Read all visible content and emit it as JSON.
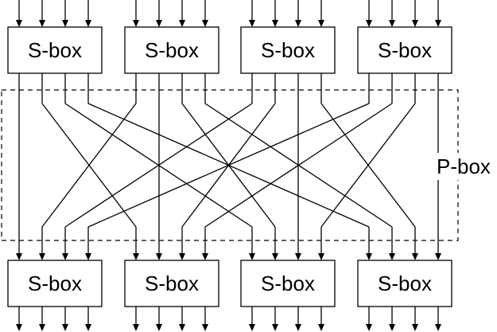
{
  "diagram": {
    "top_sboxes": [
      {
        "label": "S-box"
      },
      {
        "label": "S-box"
      },
      {
        "label": "S-box"
      },
      {
        "label": "S-box"
      }
    ],
    "bottom_sboxes": [
      {
        "label": "S-box"
      },
      {
        "label": "S-box"
      },
      {
        "label": "S-box"
      },
      {
        "label": "S-box"
      }
    ],
    "pbox_label": "P-box",
    "bits_per_sbox": 4,
    "permutation_rule": "top S-box i output bit j connects to bottom S-box j input bit i",
    "colors": {
      "line": "#000000",
      "background": "#ffffff"
    }
  }
}
